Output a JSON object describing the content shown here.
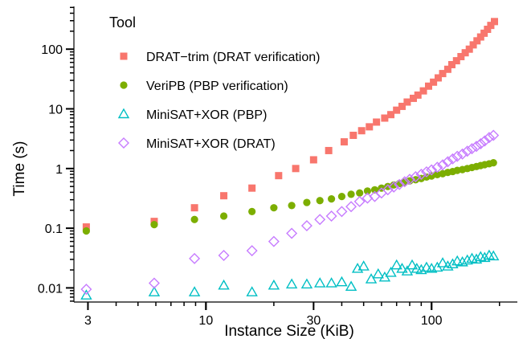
{
  "chart_data": {
    "type": "scatter",
    "title": "",
    "xlabel": "Instance Size (KiB)",
    "ylabel": "Time (s)",
    "x_scale": "log",
    "y_scale": "log",
    "xlim": [
      2.6,
      240
    ],
    "ylim": [
      0.0058,
      520
    ],
    "x_ticks": [
      {
        "value": 3,
        "label": "3"
      },
      {
        "value": 10,
        "label": "10"
      },
      {
        "value": 30,
        "label": "30"
      },
      {
        "value": 100,
        "label": "100"
      }
    ],
    "y_ticks": [
      {
        "value": 0.01,
        "label": "0.01"
      },
      {
        "value": 0.1,
        "label": "0.1"
      },
      {
        "value": 1,
        "label": "1"
      },
      {
        "value": 10,
        "label": "10"
      },
      {
        "value": 100,
        "label": "100"
      }
    ],
    "legend": {
      "title": "Tool",
      "placement": "top-left"
    },
    "grid": false,
    "series": [
      {
        "name": "DRAT−trim (DRAT verification)",
        "marker": "square",
        "color": "#f8766d",
        "x": [
          2.95,
          5.9,
          8.9,
          12,
          16,
          21,
          25,
          30,
          35,
          41,
          45,
          49,
          53,
          57,
          62,
          66,
          70,
          74,
          78,
          83,
          87,
          92,
          97,
          102,
          107,
          112,
          118,
          123,
          129,
          135,
          141,
          147,
          153,
          159,
          165,
          171,
          177,
          183,
          190
        ],
        "values": [
          0.105,
          0.13,
          0.22,
          0.35,
          0.47,
          0.76,
          1.0,
          1.4,
          2.0,
          2.8,
          3.6,
          4.3,
          5.0,
          6.0,
          7.0,
          8.0,
          9.5,
          11,
          13,
          15,
          17,
          20,
          24,
          28,
          33,
          39,
          46,
          55,
          64,
          75,
          87,
          100,
          118,
          138,
          160,
          185,
          215,
          250,
          290
        ]
      },
      {
        "name": "VeriPB (PBP verification)",
        "marker": "circle",
        "color": "#7cae00",
        "x": [
          2.95,
          5.9,
          8.9,
          12,
          16,
          20,
          24,
          28,
          32,
          36,
          40,
          44,
          48,
          52,
          56,
          60,
          64,
          68,
          72,
          76,
          80,
          85,
          90,
          95,
          100,
          106,
          112,
          118,
          124,
          130,
          137,
          144,
          151,
          158,
          165,
          172,
          180,
          188
        ],
        "values": [
          0.09,
          0.115,
          0.14,
          0.16,
          0.19,
          0.22,
          0.24,
          0.27,
          0.29,
          0.31,
          0.34,
          0.37,
          0.39,
          0.42,
          0.44,
          0.47,
          0.5,
          0.53,
          0.56,
          0.59,
          0.62,
          0.65,
          0.68,
          0.72,
          0.75,
          0.79,
          0.82,
          0.86,
          0.89,
          0.93,
          0.96,
          1.0,
          1.04,
          1.08,
          1.12,
          1.16,
          1.2,
          1.25
        ]
      },
      {
        "name": "MiniSAT+XOR (PBP)",
        "marker": "triangle",
        "color": "#00bfc4",
        "x": [
          2.95,
          5.9,
          8.9,
          12,
          16,
          20,
          24,
          28,
          32,
          36,
          40,
          44,
          47,
          50,
          54,
          58,
          62,
          66,
          70,
          74,
          78,
          82,
          86,
          90,
          95,
          100,
          106,
          112,
          118,
          124,
          130,
          137,
          144,
          151,
          158,
          165,
          172,
          180,
          188
        ],
        "values": [
          0.0075,
          0.0085,
          0.0085,
          0.011,
          0.0085,
          0.011,
          0.0115,
          0.0115,
          0.012,
          0.012,
          0.0125,
          0.0105,
          0.021,
          0.023,
          0.014,
          0.017,
          0.015,
          0.018,
          0.024,
          0.021,
          0.019,
          0.024,
          0.021,
          0.02,
          0.022,
          0.021,
          0.022,
          0.026,
          0.023,
          0.025,
          0.028,
          0.027,
          0.029,
          0.031,
          0.03,
          0.033,
          0.032,
          0.035,
          0.034
        ]
      },
      {
        "name": "MiniSAT+XOR (DRAT)",
        "marker": "diamond",
        "color": "#c77cff",
        "x": [
          2.95,
          5.9,
          8.9,
          12,
          16,
          20,
          24,
          28,
          32,
          36,
          40,
          44,
          48,
          52,
          56,
          60,
          64,
          68,
          72,
          76,
          80,
          85,
          90,
          95,
          100,
          106,
          112,
          118,
          124,
          130,
          137,
          144,
          151,
          158,
          165,
          172,
          180,
          188
        ],
        "values": [
          0.0095,
          0.012,
          0.031,
          0.035,
          0.042,
          0.06,
          0.082,
          0.11,
          0.14,
          0.16,
          0.19,
          0.23,
          0.28,
          0.32,
          0.34,
          0.39,
          0.44,
          0.49,
          0.54,
          0.6,
          0.66,
          0.73,
          0.8,
          0.88,
          0.95,
          1.05,
          1.15,
          1.3,
          1.45,
          1.6,
          1.75,
          1.95,
          2.15,
          2.35,
          2.6,
          2.9,
          3.3,
          3.6
        ]
      }
    ]
  }
}
